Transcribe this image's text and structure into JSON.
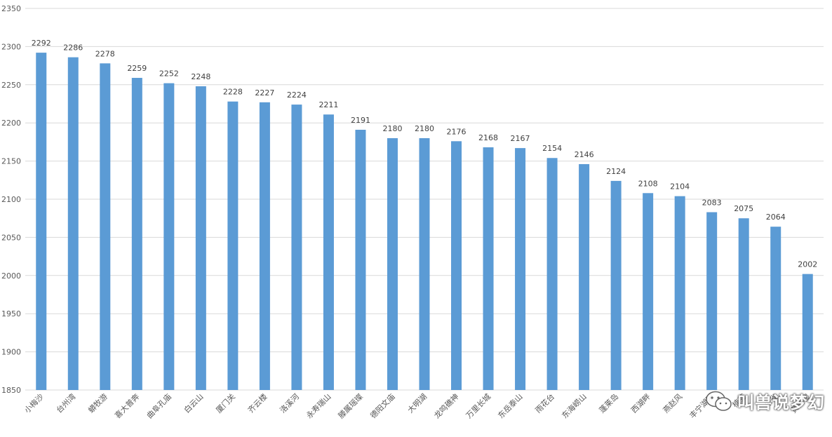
{
  "chart_data": {
    "type": "bar",
    "title": "",
    "xlabel": "",
    "ylabel": "",
    "ylim": [
      1850,
      2350
    ],
    "yticks": [
      1850,
      1900,
      1950,
      2000,
      2050,
      2100,
      2150,
      2200,
      2250,
      2300,
      2350
    ],
    "grid": true,
    "legend": "none",
    "bar_color": "#5B9BD5",
    "grid_color": "#D9D9D9",
    "label_color": "#595959",
    "categories": [
      "小梅沙",
      "台州湾",
      "蟒牧游",
      "喜大普奔",
      "曲阜孔庙",
      "白云山",
      "厦门关",
      "齐云楼",
      "洛溪河",
      "永寿瑞山",
      "滕属瑶璨",
      "德阳文庙",
      "大明湖",
      "龙鸣礁神",
      "万里长城",
      "东岳泰山",
      "雨花台",
      "东海崂山",
      "蓬莱岛",
      "西湖畔",
      "燕赵风",
      "丰宁湖阳",
      "楠苑",
      "朱雀",
      "黄鹤楼"
    ],
    "values": [
      2292,
      2286,
      2278,
      2259,
      2252,
      2248,
      2228,
      2227,
      2224,
      2211,
      2191,
      2180,
      2180,
      2176,
      2168,
      2167,
      2154,
      2146,
      2124,
      2108,
      2104,
      2083,
      2075,
      2064,
      2002
    ]
  },
  "watermark": {
    "text": "叫兽说梦幻",
    "icon": "wechat-icon"
  }
}
